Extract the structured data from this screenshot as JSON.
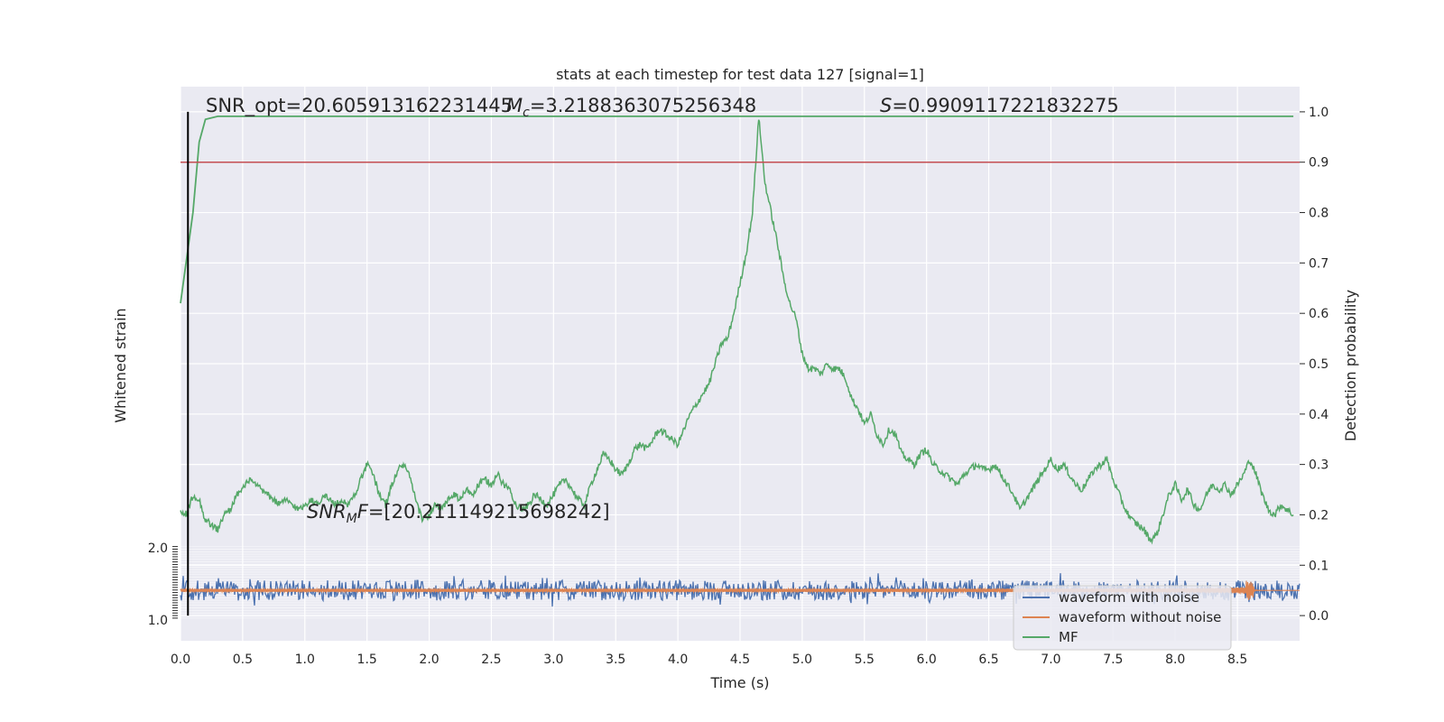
{
  "chart_data": {
    "type": "line",
    "title": "stats at each timestep for test data 127 [signal=1]",
    "xlabel": "Time (s)",
    "ylabel_left": "Whitened strain",
    "ylabel_right": "Detection probability",
    "xlim": [
      0.0,
      9.0
    ],
    "ylim_right": [
      -0.05,
      1.05
    ],
    "grid": true,
    "legend_placement": "lower right",
    "x_ticks": [
      "0.0",
      "0.5",
      "1.0",
      "1.5",
      "2.0",
      "2.5",
      "3.0",
      "3.5",
      "4.0",
      "4.5",
      "5.0",
      "5.5",
      "6.0",
      "6.5",
      "7.0",
      "7.5",
      "8.0",
      "8.5"
    ],
    "y_ticks_right": [
      "0.0",
      "0.1",
      "0.2",
      "0.3",
      "0.4",
      "0.5",
      "0.6",
      "0.7",
      "0.8",
      "0.9",
      "1.0"
    ],
    "left_axis_top_tick": "2.0",
    "left_axis_bottom_tick": "1.0",
    "threshold": 0.9,
    "threshold_color": "#c44e52",
    "marker_x": 0.06,
    "annotations": {
      "snr_opt": "SNR_opt=20.605913162231445",
      "mc_sym": "M",
      "mc_sub": "c",
      "mc_val": "=3.2188363075256348",
      "s_sym": "S",
      "s_val": "=0.9909117221832275",
      "snrmf_sym": "SNR",
      "snrmf_sub": "M",
      "snrmf_mid": "F",
      "snrmf_val": "=[20.211149215698242]"
    },
    "series": [
      {
        "name": "waveform with noise",
        "color": "#4c72b0",
        "center": 0.05,
        "amplitude": 0.02
      },
      {
        "name": "waveform without noise",
        "color": "#dd8452",
        "center": 0.05,
        "amplitude": 0.006,
        "chirp_peak_x": 8.6
      },
      {
        "name": "MF",
        "color": "#55a868",
        "points": [
          [
            0.0,
            0.62
          ],
          [
            0.1,
            0.8
          ],
          [
            0.15,
            0.94
          ],
          [
            0.2,
            0.985
          ],
          [
            0.3,
            0.991
          ],
          [
            8.95,
            0.991
          ]
        ]
      }
    ],
    "detection_probability": {
      "color": "#55a868",
      "points": [
        [
          0.0,
          0.21
        ],
        [
          0.05,
          0.2
        ],
        [
          0.1,
          0.24
        ],
        [
          0.15,
          0.23
        ],
        [
          0.2,
          0.19
        ],
        [
          0.25,
          0.18
        ],
        [
          0.3,
          0.17
        ],
        [
          0.35,
          0.2
        ],
        [
          0.4,
          0.21
        ],
        [
          0.45,
          0.24
        ],
        [
          0.5,
          0.25
        ],
        [
          0.55,
          0.27
        ],
        [
          0.6,
          0.26
        ],
        [
          0.65,
          0.25
        ],
        [
          0.7,
          0.24
        ],
        [
          0.75,
          0.23
        ],
        [
          0.8,
          0.22
        ],
        [
          0.85,
          0.23
        ],
        [
          0.9,
          0.22
        ],
        [
          0.95,
          0.21
        ],
        [
          1.0,
          0.22
        ],
        [
          1.05,
          0.23
        ],
        [
          1.1,
          0.22
        ],
        [
          1.15,
          0.24
        ],
        [
          1.2,
          0.23
        ],
        [
          1.25,
          0.22
        ],
        [
          1.3,
          0.23
        ],
        [
          1.35,
          0.22
        ],
        [
          1.4,
          0.24
        ],
        [
          1.45,
          0.27
        ],
        [
          1.5,
          0.3
        ],
        [
          1.55,
          0.28
        ],
        [
          1.6,
          0.24
        ],
        [
          1.65,
          0.22
        ],
        [
          1.7,
          0.26
        ],
        [
          1.75,
          0.29
        ],
        [
          1.8,
          0.3
        ],
        [
          1.85,
          0.27
        ],
        [
          1.9,
          0.22
        ],
        [
          1.95,
          0.19
        ],
        [
          2.0,
          0.2
        ],
        [
          2.05,
          0.22
        ],
        [
          2.1,
          0.21
        ],
        [
          2.15,
          0.23
        ],
        [
          2.2,
          0.24
        ],
        [
          2.25,
          0.23
        ],
        [
          2.3,
          0.25
        ],
        [
          2.35,
          0.24
        ],
        [
          2.4,
          0.26
        ],
        [
          2.45,
          0.27
        ],
        [
          2.5,
          0.26
        ],
        [
          2.55,
          0.28
        ],
        [
          2.6,
          0.26
        ],
        [
          2.65,
          0.25
        ],
        [
          2.7,
          0.22
        ],
        [
          2.75,
          0.21
        ],
        [
          2.8,
          0.22
        ],
        [
          2.85,
          0.24
        ],
        [
          2.9,
          0.23
        ],
        [
          2.95,
          0.22
        ],
        [
          3.0,
          0.24
        ],
        [
          3.05,
          0.26
        ],
        [
          3.1,
          0.27
        ],
        [
          3.15,
          0.25
        ],
        [
          3.2,
          0.23
        ],
        [
          3.25,
          0.22
        ],
        [
          3.3,
          0.26
        ],
        [
          3.35,
          0.29
        ],
        [
          3.4,
          0.32
        ],
        [
          3.45,
          0.31
        ],
        [
          3.5,
          0.29
        ],
        [
          3.55,
          0.28
        ],
        [
          3.6,
          0.3
        ],
        [
          3.65,
          0.33
        ],
        [
          3.7,
          0.34
        ],
        [
          3.75,
          0.33
        ],
        [
          3.8,
          0.35
        ],
        [
          3.85,
          0.37
        ],
        [
          3.9,
          0.36
        ],
        [
          3.95,
          0.35
        ],
        [
          4.0,
          0.34
        ],
        [
          4.05,
          0.37
        ],
        [
          4.1,
          0.4
        ],
        [
          4.15,
          0.42
        ],
        [
          4.2,
          0.44
        ],
        [
          4.25,
          0.46
        ],
        [
          4.3,
          0.5
        ],
        [
          4.35,
          0.54
        ],
        [
          4.4,
          0.55
        ],
        [
          4.45,
          0.6
        ],
        [
          4.5,
          0.66
        ],
        [
          4.55,
          0.72
        ],
        [
          4.6,
          0.8
        ],
        [
          4.65,
          0.99
        ],
        [
          4.7,
          0.86
        ],
        [
          4.75,
          0.8
        ],
        [
          4.8,
          0.74
        ],
        [
          4.85,
          0.67
        ],
        [
          4.9,
          0.62
        ],
        [
          4.95,
          0.59
        ],
        [
          5.0,
          0.52
        ],
        [
          5.05,
          0.49
        ],
        [
          5.1,
          0.49
        ],
        [
          5.15,
          0.48
        ],
        [
          5.2,
          0.5
        ],
        [
          5.25,
          0.49
        ],
        [
          5.3,
          0.49
        ],
        [
          5.35,
          0.47
        ],
        [
          5.4,
          0.43
        ],
        [
          5.45,
          0.41
        ],
        [
          5.5,
          0.38
        ],
        [
          5.55,
          0.4
        ],
        [
          5.6,
          0.36
        ],
        [
          5.65,
          0.34
        ],
        [
          5.7,
          0.37
        ],
        [
          5.75,
          0.36
        ],
        [
          5.8,
          0.32
        ],
        [
          5.85,
          0.31
        ],
        [
          5.9,
          0.3
        ],
        [
          5.95,
          0.32
        ],
        [
          6.0,
          0.33
        ],
        [
          6.05,
          0.3
        ],
        [
          6.1,
          0.29
        ],
        [
          6.15,
          0.28
        ],
        [
          6.2,
          0.27
        ],
        [
          6.25,
          0.26
        ],
        [
          6.3,
          0.28
        ],
        [
          6.35,
          0.29
        ],
        [
          6.4,
          0.3
        ],
        [
          6.45,
          0.29
        ],
        [
          6.5,
          0.29
        ],
        [
          6.55,
          0.3
        ],
        [
          6.6,
          0.28
        ],
        [
          6.65,
          0.26
        ],
        [
          6.7,
          0.24
        ],
        [
          6.75,
          0.21
        ],
        [
          6.8,
          0.23
        ],
        [
          6.85,
          0.25
        ],
        [
          6.9,
          0.27
        ],
        [
          6.95,
          0.29
        ],
        [
          7.0,
          0.31
        ],
        [
          7.05,
          0.29
        ],
        [
          7.1,
          0.3
        ],
        [
          7.15,
          0.28
        ],
        [
          7.2,
          0.26
        ],
        [
          7.25,
          0.25
        ],
        [
          7.3,
          0.27
        ],
        [
          7.35,
          0.29
        ],
        [
          7.4,
          0.3
        ],
        [
          7.45,
          0.31
        ],
        [
          7.5,
          0.27
        ],
        [
          7.55,
          0.24
        ],
        [
          7.6,
          0.21
        ],
        [
          7.65,
          0.19
        ],
        [
          7.7,
          0.18
        ],
        [
          7.75,
          0.17
        ],
        [
          7.8,
          0.15
        ],
        [
          7.85,
          0.16
        ],
        [
          7.9,
          0.2
        ],
        [
          7.95,
          0.24
        ],
        [
          8.0,
          0.26
        ],
        [
          8.05,
          0.23
        ],
        [
          8.1,
          0.25
        ],
        [
          8.15,
          0.22
        ],
        [
          8.2,
          0.21
        ],
        [
          8.25,
          0.24
        ],
        [
          8.3,
          0.26
        ],
        [
          8.35,
          0.25
        ],
        [
          8.4,
          0.26
        ],
        [
          8.45,
          0.24
        ],
        [
          8.5,
          0.26
        ],
        [
          8.55,
          0.28
        ],
        [
          8.6,
          0.31
        ],
        [
          8.65,
          0.28
        ],
        [
          8.7,
          0.24
        ],
        [
          8.75,
          0.21
        ],
        [
          8.8,
          0.2
        ],
        [
          8.85,
          0.22
        ],
        [
          8.9,
          0.21
        ],
        [
          8.95,
          0.2
        ]
      ]
    }
  }
}
